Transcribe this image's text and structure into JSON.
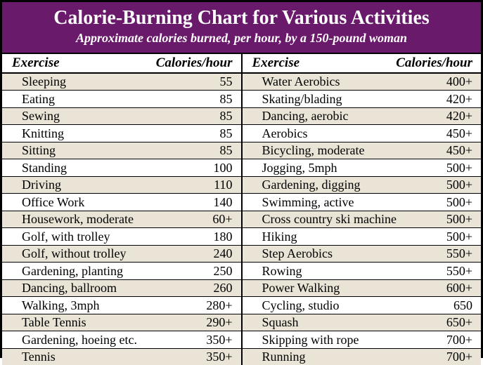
{
  "header": {
    "title": "Calorie-Burning Chart for Various Activities",
    "subtitle": "Approximate calories burned, per hour, by a 150-pound woman"
  },
  "colors": {
    "header_bg": "#6a1a6b",
    "header_text": "#ffffff",
    "stripe_a": "#ffffff",
    "stripe_b": "#eae4d6",
    "colhead_bg": "#ffffff",
    "border": "#000000"
  },
  "column_headers": {
    "exercise": "Exercise",
    "calories": "Calories/hour"
  },
  "left": [
    {
      "exercise": "Sleeping",
      "calories": "55"
    },
    {
      "exercise": "Eating",
      "calories": "85"
    },
    {
      "exercise": "Sewing",
      "calories": "85"
    },
    {
      "exercise": "Knitting",
      "calories": "85"
    },
    {
      "exercise": "Sitting",
      "calories": "85"
    },
    {
      "exercise": "Standing",
      "calories": "100"
    },
    {
      "exercise": "Driving",
      "calories": "110"
    },
    {
      "exercise": "Office Work",
      "calories": "140"
    },
    {
      "exercise": "Housework, moderate",
      "calories": "60+"
    },
    {
      "exercise": "Golf, with trolley",
      "calories": "180"
    },
    {
      "exercise": "Golf, without trolley",
      "calories": "240"
    },
    {
      "exercise": "Gardening, planting",
      "calories": "250"
    },
    {
      "exercise": "Dancing, ballroom",
      "calories": "260"
    },
    {
      "exercise": "Walking, 3mph",
      "calories": "280+"
    },
    {
      "exercise": "Table Tennis",
      "calories": "290+"
    },
    {
      "exercise": "Gardening, hoeing etc.",
      "calories": "350+"
    },
    {
      "exercise": "Tennis",
      "calories": "350+"
    }
  ],
  "right": [
    {
      "exercise": "Water Aerobics",
      "calories": "400+"
    },
    {
      "exercise": "Skating/blading",
      "calories": "420+"
    },
    {
      "exercise": "Dancing, aerobic",
      "calories": "420+"
    },
    {
      "exercise": "Aerobics",
      "calories": "450+"
    },
    {
      "exercise": "Bicycling, moderate",
      "calories": "450+"
    },
    {
      "exercise": "Jogging, 5mph",
      "calories": "500+"
    },
    {
      "exercise": "Gardening, digging",
      "calories": "500+"
    },
    {
      "exercise": "Swimming, active",
      "calories": "500+"
    },
    {
      "exercise": "Cross country ski machine",
      "calories": "500+"
    },
    {
      "exercise": "Hiking",
      "calories": "500+"
    },
    {
      "exercise": "Step Aerobics",
      "calories": "550+"
    },
    {
      "exercise": "Rowing",
      "calories": "550+"
    },
    {
      "exercise": "Power Walking",
      "calories": "600+"
    },
    {
      "exercise": "Cycling, studio",
      "calories": "650"
    },
    {
      "exercise": "Squash",
      "calories": "650+"
    },
    {
      "exercise": "Skipping with rope",
      "calories": "700+"
    },
    {
      "exercise": "Running",
      "calories": "700+"
    }
  ]
}
